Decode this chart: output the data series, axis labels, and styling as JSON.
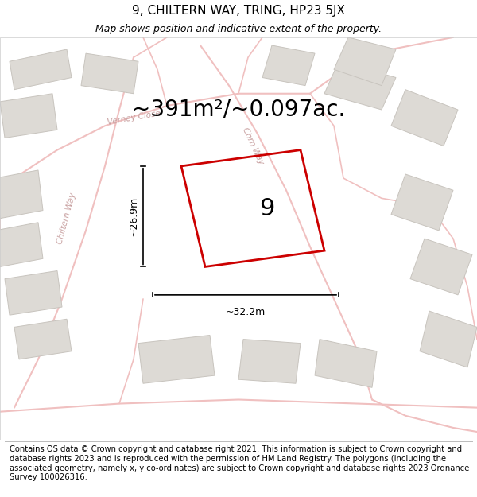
{
  "title": "9, CHILTERN WAY, TRING, HP23 5JX",
  "subtitle": "Map shows position and indicative extent of the property.",
  "area_text": "~391m²/~0.097ac.",
  "width_label": "~32.2m",
  "height_label": "~26.9m",
  "property_number": "9",
  "footer_text": "Contains OS data © Crown copyright and database right 2021. This information is subject to Crown copyright and database rights 2023 and is reproduced with the permission of HM Land Registry. The polygons (including the associated geometry, namely x, y co-ordinates) are subject to Crown copyright and database rights 2023 Ordnance Survey 100026316.",
  "bg_color": "#f5f5f5",
  "map_bg_color": "#f5f5f5",
  "road_color": "#f0c0c0",
  "building_color": "#dddad5",
  "building_border_color": "#c8c4be",
  "property_outline_color": "#cc0000",
  "dim_line_color": "#000000",
  "text_color": "#000000",
  "road_label_color": "#c8a0a0",
  "title_fontsize": 11,
  "subtitle_fontsize": 9,
  "area_fontsize": 20,
  "label_fontsize": 9,
  "number_fontsize": 22,
  "road_label_fontsize": 7.5,
  "footer_fontsize": 7.2
}
